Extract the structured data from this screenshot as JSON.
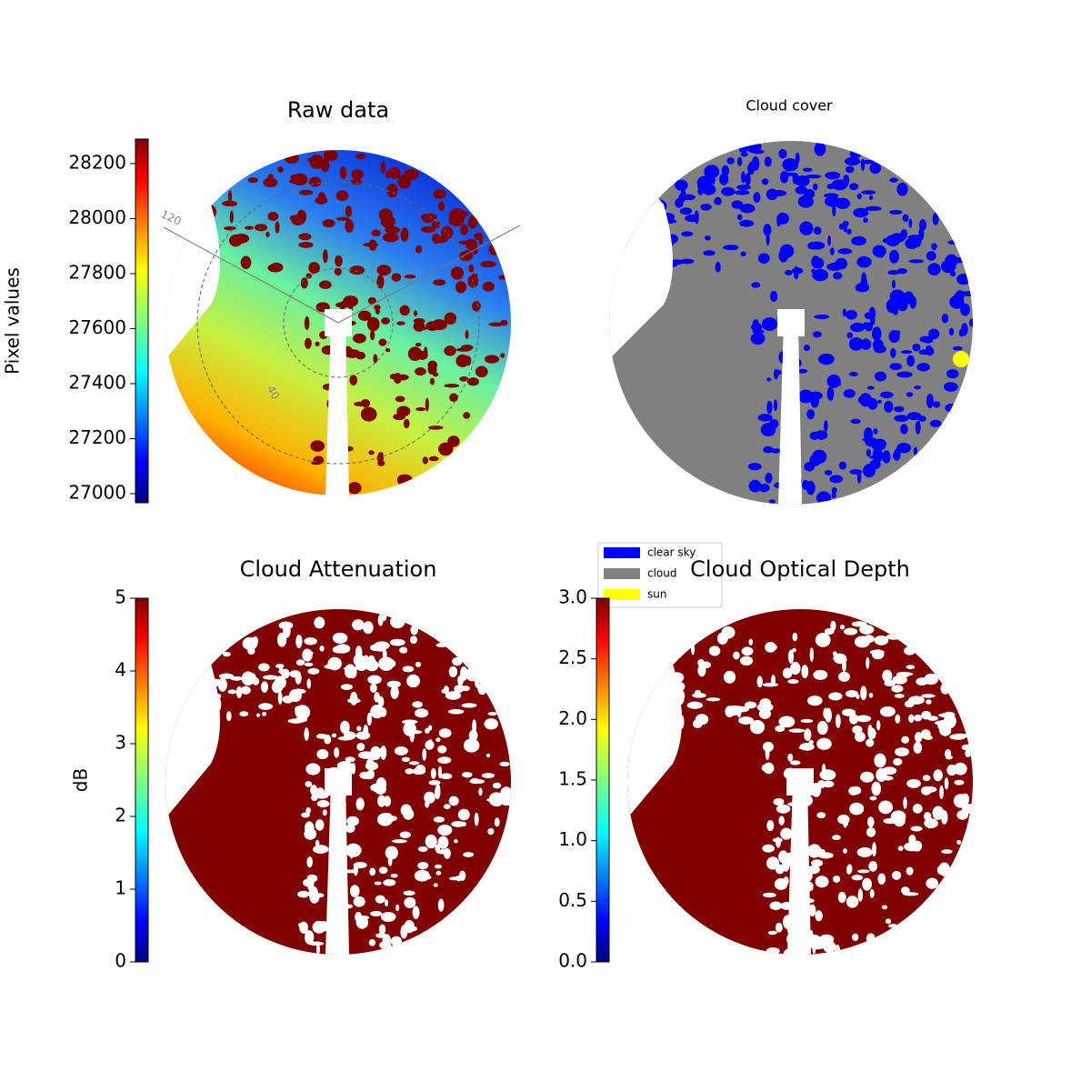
{
  "chart_data": [
    {
      "type": "image",
      "title": "Raw data",
      "colormap": "jet",
      "colorbar": {
        "label": "Pixel values",
        "lim": [
          26967,
          28289
        ],
        "ticks": [
          27000,
          27200,
          27400,
          27600,
          27800,
          28000,
          28200
        ]
      },
      "annotations": [
        "120",
        "40"
      ]
    },
    {
      "type": "categorical-image",
      "title": "Cloud cover",
      "legend": {
        "entries": [
          {
            "name": "clear sky",
            "color": "#0000ff"
          },
          {
            "name": "cloud",
            "color": "#808080"
          },
          {
            "name": "sun",
            "color": "#ffff00"
          }
        ]
      }
    },
    {
      "type": "image",
      "title": "Cloud Attenuation",
      "colormap": "jet",
      "colorbar": {
        "label": "dB",
        "lim": [
          0,
          5
        ],
        "ticks": [
          0,
          1,
          2,
          3,
          4,
          5
        ]
      }
    },
    {
      "type": "image",
      "title": "Cloud Optical Depth",
      "colormap": "jet",
      "colorbar": {
        "lim": [
          0,
          3
        ],
        "ticks": [
          {
            "value": 0,
            "label": "0.0"
          },
          {
            "value": 0.5,
            "label": "0.5"
          },
          {
            "value": 1,
            "label": "1.0"
          },
          {
            "value": 1.5,
            "label": "1.5"
          },
          {
            "value": 2,
            "label": "2.0"
          },
          {
            "value": 2.5,
            "label": "2.5"
          },
          {
            "value": 3,
            "label": "3.0"
          }
        ]
      }
    }
  ]
}
